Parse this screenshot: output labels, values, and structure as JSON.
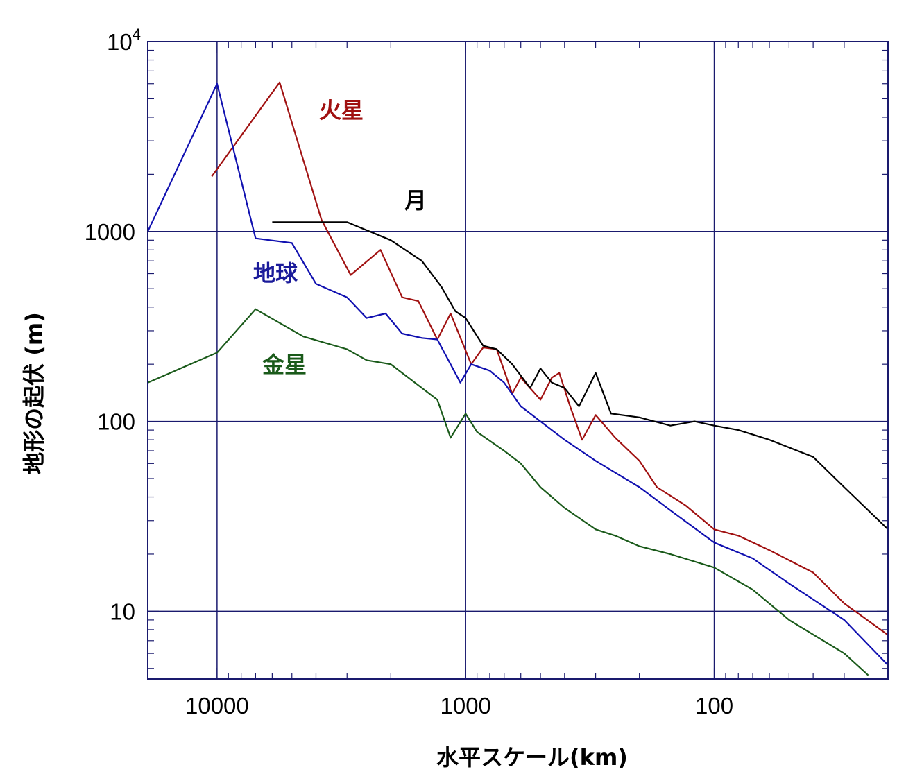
{
  "chart_data": {
    "type": "line",
    "xlabel": "水平スケール(km)",
    "ylabel": "地形の起伏 (m)",
    "xscale": "log",
    "yscale": "log",
    "x_reversed": true,
    "xlim": [
      19000,
      20
    ],
    "ylim": [
      4.4,
      10000
    ],
    "x_ticks": [
      {
        "value": 10000,
        "label": "10000"
      },
      {
        "value": 1000,
        "label": "1000"
      },
      {
        "value": 100,
        "label": "100"
      }
    ],
    "y_ticks": [
      {
        "value": 10,
        "label": "10",
        "sup": ""
      },
      {
        "value": 100,
        "label": "100",
        "sup": ""
      },
      {
        "value": 1000,
        "label": "1000",
        "sup": ""
      },
      {
        "value": 10000,
        "label": "10",
        "sup": "4"
      }
    ],
    "grid": true,
    "colors": {
      "frame": "#1a1a6e",
      "grid": "#1a1a6e"
    },
    "series": [
      {
        "name": "火星",
        "color": "#a01010",
        "points": [
          [
            10500,
            1950
          ],
          [
            5600,
            6100
          ],
          [
            3800,
            1150
          ],
          [
            2900,
            590
          ],
          [
            2200,
            800
          ],
          [
            1800,
            450
          ],
          [
            1550,
            430
          ],
          [
            1300,
            270
          ],
          [
            1150,
            370
          ],
          [
            950,
            200
          ],
          [
            850,
            245
          ],
          [
            750,
            240
          ],
          [
            650,
            140
          ],
          [
            600,
            170
          ],
          [
            500,
            130
          ],
          [
            450,
            170
          ],
          [
            420,
            180
          ],
          [
            380,
            120
          ],
          [
            340,
            80
          ],
          [
            300,
            108
          ],
          [
            250,
            82
          ],
          [
            200,
            62
          ],
          [
            170,
            45
          ],
          [
            130,
            36
          ],
          [
            100,
            27
          ],
          [
            80,
            25
          ],
          [
            60,
            21
          ],
          [
            40,
            16
          ],
          [
            30,
            11
          ],
          [
            20,
            7.5
          ]
        ]
      },
      {
        "name": "地球",
        "color": "#1010b0",
        "points": [
          [
            19000,
            1000
          ],
          [
            10000,
            6000
          ],
          [
            7000,
            920
          ],
          [
            5000,
            870
          ],
          [
            4000,
            530
          ],
          [
            3000,
            450
          ],
          [
            2500,
            350
          ],
          [
            2100,
            370
          ],
          [
            1800,
            290
          ],
          [
            1500,
            275
          ],
          [
            1300,
            270
          ],
          [
            1050,
            160
          ],
          [
            950,
            200
          ],
          [
            800,
            185
          ],
          [
            700,
            160
          ],
          [
            600,
            120
          ],
          [
            500,
            100
          ],
          [
            400,
            80
          ],
          [
            300,
            62
          ],
          [
            200,
            45
          ],
          [
            150,
            34
          ],
          [
            100,
            23
          ],
          [
            70,
            19
          ],
          [
            50,
            14
          ],
          [
            30,
            9
          ],
          [
            20,
            5.2
          ]
        ]
      },
      {
        "name": "月",
        "color": "#000000",
        "points": [
          [
            6000,
            1120
          ],
          [
            3000,
            1120
          ],
          [
            2000,
            900
          ],
          [
            1500,
            700
          ],
          [
            1250,
            510
          ],
          [
            1100,
            380
          ],
          [
            1000,
            350
          ],
          [
            850,
            250
          ],
          [
            750,
            240
          ],
          [
            650,
            200
          ],
          [
            550,
            150
          ],
          [
            500,
            190
          ],
          [
            450,
            160
          ],
          [
            400,
            150
          ],
          [
            350,
            120
          ],
          [
            300,
            180
          ],
          [
            260,
            110
          ],
          [
            200,
            105
          ],
          [
            150,
            95
          ],
          [
            120,
            100
          ],
          [
            100,
            95
          ],
          [
            80,
            90
          ],
          [
            60,
            80
          ],
          [
            40,
            65
          ],
          [
            30,
            45
          ],
          [
            20,
            27
          ]
        ]
      },
      {
        "name": "金星",
        "color": "#1a5a1a",
        "points": [
          [
            19000,
            160
          ],
          [
            10000,
            230
          ],
          [
            7000,
            390
          ],
          [
            4500,
            280
          ],
          [
            3000,
            240
          ],
          [
            2500,
            210
          ],
          [
            2000,
            200
          ],
          [
            1600,
            160
          ],
          [
            1300,
            130
          ],
          [
            1150,
            82
          ],
          [
            1000,
            110
          ],
          [
            900,
            88
          ],
          [
            700,
            70
          ],
          [
            600,
            60
          ],
          [
            500,
            45
          ],
          [
            400,
            35
          ],
          [
            300,
            27
          ],
          [
            250,
            25
          ],
          [
            200,
            22
          ],
          [
            150,
            20
          ],
          [
            100,
            17
          ],
          [
            70,
            13
          ],
          [
            50,
            9
          ],
          [
            30,
            6
          ],
          [
            24,
            4.6
          ]
        ]
      }
    ]
  },
  "series_label_colors": [
    "#a01010",
    "#1a1a9a",
    "#000000",
    "#1a5a1a"
  ]
}
